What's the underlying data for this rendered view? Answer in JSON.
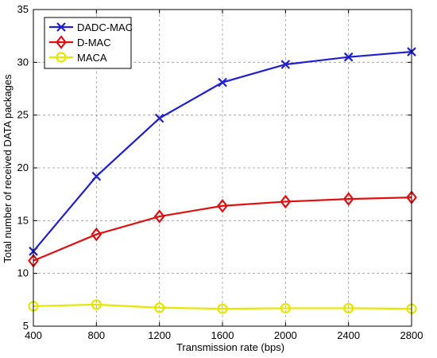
{
  "chart_data": {
    "type": "line",
    "title": "",
    "xlabel": "Transmission rate (bps)",
    "ylabel": "Total number of received DATA packages",
    "x": [
      400,
      800,
      1200,
      1600,
      2000,
      2400,
      2800
    ],
    "xlim": [
      400,
      2800
    ],
    "ylim": [
      5,
      35
    ],
    "xticks": [
      "400",
      "800",
      "1200",
      "1600",
      "2000",
      "2400",
      "2800"
    ],
    "yticks": [
      "5",
      "10",
      "15",
      "20",
      "25",
      "30",
      "35"
    ],
    "grid": true,
    "legend_position": "top-left",
    "series": [
      {
        "name": "DADC-MAC",
        "color": "#1f1fd0",
        "marker": "x",
        "values": [
          12.1,
          19.2,
          24.7,
          28.1,
          29.8,
          30.5,
          31.0
        ]
      },
      {
        "name": "D-MAC",
        "color": "#e01010",
        "marker": "diamond",
        "values": [
          11.2,
          13.7,
          15.4,
          16.4,
          16.8,
          17.05,
          17.2
        ]
      },
      {
        "name": "MACA",
        "color": "#e6e600",
        "marker": "circle",
        "values": [
          6.9,
          7.05,
          6.75,
          6.65,
          6.7,
          6.7,
          6.65
        ]
      }
    ]
  }
}
